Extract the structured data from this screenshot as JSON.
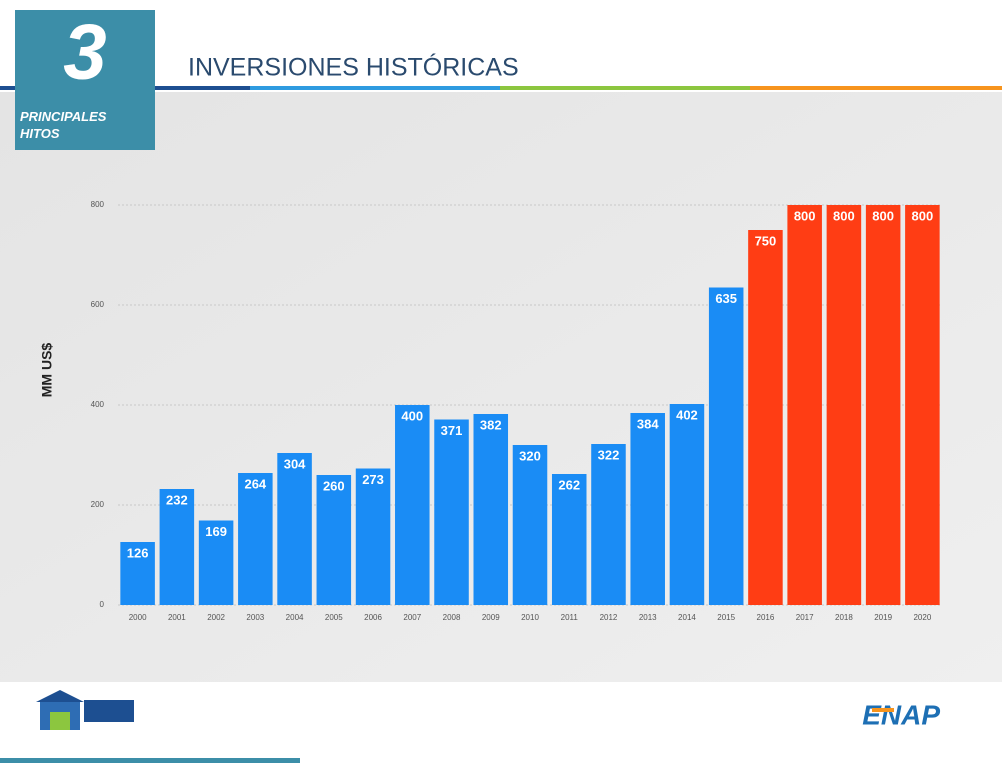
{
  "slide": {
    "number": "3",
    "section": "PRINCIPALES HITOS",
    "logo": "ENAP"
  },
  "chart_data": {
    "type": "bar",
    "title": "INVERSIONES HISTÓRICAS",
    "y_label": "MM US$",
    "categories": [
      "2000",
      "2001",
      "2002",
      "2003",
      "2004",
      "2005",
      "2006",
      "2007",
      "2008",
      "2009",
      "2010",
      "2011",
      "2012",
      "2013",
      "2014",
      "2015",
      "2016",
      "2017",
      "2018",
      "2019",
      "2020"
    ],
    "values": [
      126,
      232,
      169,
      264,
      304,
      260,
      273,
      400,
      371,
      382,
      320,
      262,
      322,
      384,
      402,
      635,
      750,
      800,
      800,
      800,
      800
    ],
    "colors": [
      "#1a8cf5",
      "#1a8cf5",
      "#1a8cf5",
      "#1a8cf5",
      "#1a8cf5",
      "#1a8cf5",
      "#1a8cf5",
      "#1a8cf5",
      "#1a8cf5",
      "#1a8cf5",
      "#1a8cf5",
      "#1a8cf5",
      "#1a8cf5",
      "#1a8cf5",
      "#1a8cf5",
      "#1a8cf5",
      "#ff3d14",
      "#ff3d14",
      "#ff3d14",
      "#ff3d14",
      "#ff3d14"
    ],
    "ylim": [
      0,
      800
    ],
    "yticks": [
      0,
      200,
      400,
      600,
      800
    ],
    "grid": true
  }
}
